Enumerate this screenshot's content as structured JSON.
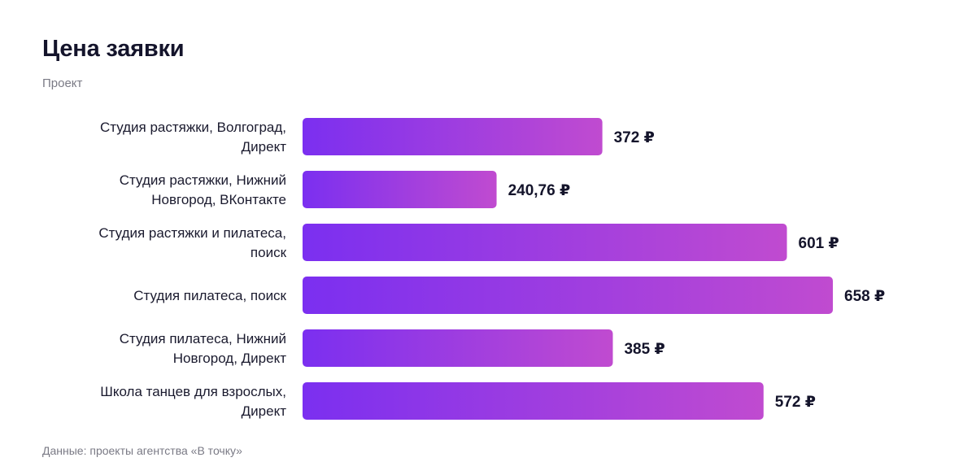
{
  "title": "Цена заявки",
  "subtitle": "Проект",
  "footer": "Данные: проекты агентства «В точку»",
  "colors": {
    "bar_start": "#7b2ff0",
    "bar_end": "#c04bd0",
    "text": "#1a1a2e",
    "muted": "#7a7a85"
  },
  "chart_data": {
    "type": "bar",
    "orientation": "horizontal",
    "title": "Цена заявки",
    "subtitle": "Проект",
    "unit": "₽",
    "categories": [
      [
        "Студия растяжки, Волгоград,",
        "Директ"
      ],
      [
        "Студия растяжки, Нижний",
        "Новгород, ВКонтакте"
      ],
      [
        "Студия растяжки и пилатеса,",
        "поиск"
      ],
      [
        "Студия пилатеса, поиск"
      ],
      [
        "Студия пилатеса, Нижний",
        "Новгород, Директ"
      ],
      [
        "Школа танцев для взрослых,",
        "Директ"
      ]
    ],
    "values": [
      372,
      240.76,
      601,
      658,
      385,
      572
    ],
    "value_labels": [
      "372 ₽",
      "240,76 ₽",
      "601 ₽",
      "658 ₽",
      "385 ₽",
      "572 ₽"
    ],
    "xlim": [
      0,
      658
    ],
    "grid": false,
    "legend": "none"
  }
}
